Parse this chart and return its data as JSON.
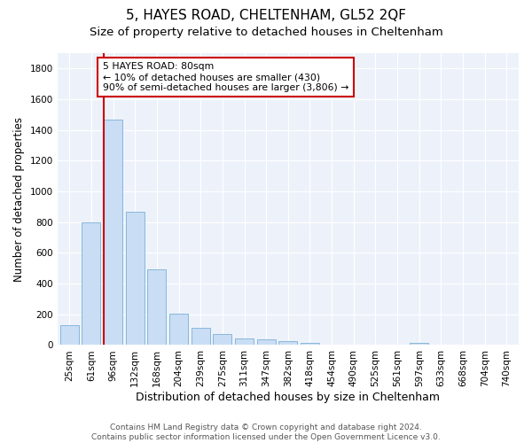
{
  "title": "5, HAYES ROAD, CHELTENHAM, GL52 2QF",
  "subtitle": "Size of property relative to detached houses in Cheltenham",
  "xlabel": "Distribution of detached houses by size in Cheltenham",
  "ylabel": "Number of detached properties",
  "categories": [
    "25sqm",
    "61sqm",
    "96sqm",
    "132sqm",
    "168sqm",
    "204sqm",
    "239sqm",
    "275sqm",
    "311sqm",
    "347sqm",
    "382sqm",
    "418sqm",
    "454sqm",
    "490sqm",
    "525sqm",
    "561sqm",
    "597sqm",
    "633sqm",
    "668sqm",
    "704sqm",
    "740sqm"
  ],
  "values": [
    130,
    800,
    1470,
    870,
    490,
    205,
    110,
    70,
    45,
    35,
    25,
    15,
    5,
    5,
    5,
    5,
    15,
    5,
    5,
    5,
    5
  ],
  "bar_color": "#c9ddf5",
  "bar_edge_color": "#7bafd4",
  "annotation_box_text": "5 HAYES ROAD: 80sqm\n← 10% of detached houses are smaller (430)\n90% of semi-detached houses are larger (3,806) →",
  "annotation_box_color": "#ffffff",
  "annotation_box_edge_color": "#cc0000",
  "red_line_x": 1.57,
  "ylim": [
    0,
    1900
  ],
  "yticks": [
    0,
    200,
    400,
    600,
    800,
    1000,
    1200,
    1400,
    1600,
    1800
  ],
  "background_color": "#edf2fa",
  "grid_color": "#ffffff",
  "figure_bg": "#ffffff",
  "footer": "Contains HM Land Registry data © Crown copyright and database right 2024.\nContains public sector information licensed under the Open Government Licence v3.0.",
  "title_fontsize": 11,
  "subtitle_fontsize": 9.5,
  "xlabel_fontsize": 9,
  "ylabel_fontsize": 8.5,
  "tick_fontsize": 7.5,
  "footer_fontsize": 6.5
}
